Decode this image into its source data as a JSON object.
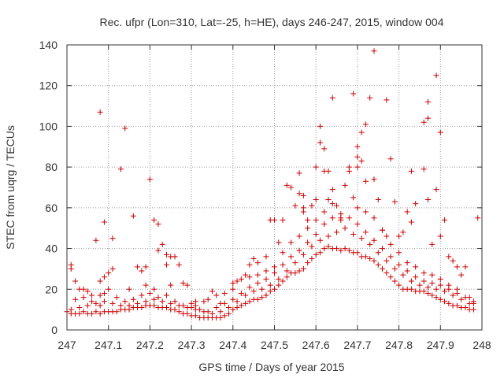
{
  "chart_data": {
    "type": "scatter",
    "title": "Rec. ufpr (Lon=310, Lat=-25, h=HE), days 246-247, 2015, window 004",
    "xlabel": "GPS time / Days of year 2015",
    "ylabel": "STEC from uqrg / TECUs",
    "xlim": [
      247,
      248
    ],
    "ylim": [
      0,
      140
    ],
    "xticks": [
      247,
      247.1,
      247.2,
      247.3,
      247.4,
      247.5,
      247.6,
      247.7,
      247.8,
      247.9,
      248
    ],
    "xtick_labels": [
      "247",
      "247.1",
      "247.2",
      "247.3",
      "247.4",
      "247.5",
      "247.6",
      "247.7",
      "247.8",
      "247.9",
      "248"
    ],
    "yticks": [
      0,
      20,
      40,
      60,
      80,
      100,
      120,
      140
    ],
    "ytick_labels": [
      "0",
      "20",
      "40",
      "60",
      "80",
      "100",
      "120",
      "140"
    ],
    "grid": true,
    "marker": "+",
    "color": "#cc0000",
    "points": [
      [
        247.01,
        32
      ],
      [
        247.01,
        30
      ],
      [
        247.02,
        24
      ],
      [
        247.03,
        20
      ],
      [
        247.04,
        20
      ],
      [
        247.05,
        19
      ],
      [
        247.06,
        14
      ],
      [
        247.08,
        17
      ],
      [
        247.09,
        18
      ],
      [
        247.09,
        26
      ],
      [
        247.1,
        28
      ],
      [
        247.08,
        24
      ],
      [
        247.07,
        44
      ],
      [
        247.09,
        53
      ],
      [
        247.11,
        45
      ],
      [
        247.08,
        107
      ],
      [
        247.13,
        79
      ],
      [
        247.14,
        99
      ],
      [
        247.16,
        56
      ],
      [
        247.17,
        31
      ],
      [
        247.19,
        31
      ],
      [
        247.19,
        22
      ],
      [
        247.2,
        74
      ],
      [
        247.21,
        54
      ],
      [
        247.22,
        52
      ],
      [
        247.22,
        39
      ],
      [
        247.23,
        42
      ],
      [
        247.24,
        37
      ],
      [
        247.25,
        36
      ],
      [
        247.26,
        36
      ],
      [
        247.24,
        32
      ],
      [
        247.27,
        32
      ],
      [
        247.29,
        22
      ],
      [
        247.3,
        13
      ],
      [
        247.31,
        12
      ],
      [
        247.33,
        14
      ],
      [
        247.35,
        19
      ],
      [
        247.36,
        17
      ],
      [
        247.38,
        18
      ],
      [
        247.4,
        20
      ],
      [
        247.41,
        24
      ],
      [
        247.43,
        27
      ],
      [
        247.44,
        32
      ],
      [
        247.45,
        35
      ],
      [
        247.46,
        33
      ],
      [
        247.48,
        36
      ],
      [
        247.49,
        54
      ],
      [
        247.5,
        54
      ],
      [
        247.51,
        43
      ],
      [
        247.52,
        54
      ],
      [
        247.53,
        71
      ],
      [
        247.54,
        70
      ],
      [
        247.55,
        61
      ],
      [
        247.56,
        77
      ],
      [
        247.56,
        67
      ],
      [
        247.57,
        66
      ],
      [
        247.57,
        60
      ],
      [
        247.57,
        58
      ],
      [
        247.58,
        54
      ],
      [
        247.59,
        61
      ],
      [
        247.6,
        80
      ],
      [
        247.6,
        64
      ],
      [
        247.61,
        92
      ],
      [
        247.61,
        100
      ],
      [
        247.62,
        89
      ],
      [
        247.62,
        78
      ],
      [
        247.63,
        78
      ],
      [
        247.63,
        64
      ],
      [
        247.64,
        114
      ],
      [
        247.64,
        69
      ],
      [
        247.65,
        61
      ],
      [
        247.66,
        54
      ],
      [
        247.67,
        71
      ],
      [
        247.68,
        78
      ],
      [
        247.68,
        80
      ],
      [
        247.69,
        116
      ],
      [
        247.69,
        65
      ],
      [
        247.7,
        90
      ],
      [
        247.7,
        85
      ],
      [
        247.7,
        80
      ],
      [
        247.71,
        97
      ],
      [
        247.71,
        83
      ],
      [
        247.72,
        101
      ],
      [
        247.72,
        73
      ],
      [
        247.73,
        114
      ],
      [
        247.74,
        137
      ],
      [
        247.74,
        74
      ],
      [
        247.75,
        64
      ],
      [
        247.76,
        49
      ],
      [
        247.77,
        113
      ],
      [
        247.77,
        46
      ],
      [
        247.78,
        84
      ],
      [
        247.79,
        63
      ],
      [
        247.8,
        46
      ],
      [
        247.81,
        48
      ],
      [
        247.82,
        58
      ],
      [
        247.83,
        78
      ],
      [
        247.83,
        53
      ],
      [
        247.84,
        62
      ],
      [
        247.86,
        79
      ],
      [
        247.86,
        102
      ],
      [
        247.87,
        104
      ],
      [
        247.87,
        112
      ],
      [
        247.87,
        64
      ],
      [
        247.88,
        42
      ],
      [
        247.89,
        125
      ],
      [
        247.89,
        69
      ],
      [
        247.9,
        97
      ],
      [
        247.9,
        46
      ],
      [
        247.91,
        54
      ],
      [
        247.92,
        36
      ],
      [
        247.93,
        34
      ],
      [
        247.94,
        31
      ],
      [
        247.95,
        27
      ],
      [
        247.96,
        31
      ],
      [
        247.97,
        16
      ],
      [
        247.98,
        13
      ],
      [
        247.99,
        55
      ],
      [
        247.0,
        9
      ],
      [
        247.01,
        8
      ],
      [
        247.02,
        8
      ],
      [
        247.03,
        8
      ],
      [
        247.04,
        9
      ],
      [
        247.05,
        8
      ],
      [
        247.06,
        8
      ],
      [
        247.07,
        9
      ],
      [
        247.08,
        8
      ],
      [
        247.09,
        9
      ],
      [
        247.1,
        9
      ],
      [
        247.11,
        9
      ],
      [
        247.12,
        9
      ],
      [
        247.13,
        10
      ],
      [
        247.14,
        10
      ],
      [
        247.15,
        10
      ],
      [
        247.16,
        11
      ],
      [
        247.17,
        11
      ],
      [
        247.18,
        11
      ],
      [
        247.19,
        12
      ],
      [
        247.2,
        12
      ],
      [
        247.21,
        12
      ],
      [
        247.22,
        11
      ],
      [
        247.23,
        11
      ],
      [
        247.24,
        11
      ],
      [
        247.25,
        10
      ],
      [
        247.26,
        10
      ],
      [
        247.27,
        9
      ],
      [
        247.28,
        8
      ],
      [
        247.29,
        8
      ],
      [
        247.3,
        7
      ],
      [
        247.31,
        7
      ],
      [
        247.32,
        6
      ],
      [
        247.33,
        6
      ],
      [
        247.34,
        6
      ],
      [
        247.35,
        6
      ],
      [
        247.36,
        6
      ],
      [
        247.37,
        6
      ],
      [
        247.38,
        7
      ],
      [
        247.39,
        8
      ],
      [
        247.4,
        10
      ],
      [
        247.41,
        11
      ],
      [
        247.42,
        12
      ],
      [
        247.43,
        13
      ],
      [
        247.44,
        14
      ],
      [
        247.45,
        15
      ],
      [
        247.46,
        15
      ],
      [
        247.47,
        16
      ],
      [
        247.48,
        17
      ],
      [
        247.49,
        19
      ],
      [
        247.5,
        20
      ],
      [
        247.51,
        22
      ],
      [
        247.52,
        24
      ],
      [
        247.53,
        26
      ],
      [
        247.54,
        28
      ],
      [
        247.55,
        28
      ],
      [
        247.56,
        29
      ],
      [
        247.57,
        30
      ],
      [
        247.58,
        33
      ],
      [
        247.59,
        35
      ],
      [
        247.6,
        37
      ],
      [
        247.61,
        38
      ],
      [
        247.62,
        40
      ],
      [
        247.63,
        41
      ],
      [
        247.64,
        40
      ],
      [
        247.65,
        40
      ],
      [
        247.66,
        39
      ],
      [
        247.67,
        40
      ],
      [
        247.68,
        39
      ],
      [
        247.69,
        38
      ],
      [
        247.7,
        38
      ],
      [
        247.71,
        36
      ],
      [
        247.72,
        36
      ],
      [
        247.73,
        35
      ],
      [
        247.74,
        34
      ],
      [
        247.75,
        32
      ],
      [
        247.76,
        30
      ],
      [
        247.77,
        28
      ],
      [
        247.78,
        26
      ],
      [
        247.79,
        24
      ],
      [
        247.8,
        22
      ],
      [
        247.81,
        20
      ],
      [
        247.82,
        20
      ],
      [
        247.83,
        20
      ],
      [
        247.84,
        19
      ],
      [
        247.85,
        19
      ],
      [
        247.86,
        19
      ],
      [
        247.87,
        18
      ],
      [
        247.88,
        17
      ],
      [
        247.89,
        16
      ],
      [
        247.9,
        15
      ],
      [
        247.91,
        14
      ],
      [
        247.92,
        13
      ],
      [
        247.93,
        12
      ],
      [
        247.94,
        12
      ],
      [
        247.95,
        11
      ],
      [
        247.96,
        11
      ],
      [
        247.97,
        10
      ],
      [
        247.98,
        10
      ],
      [
        247.01,
        10
      ],
      [
        247.03,
        11
      ],
      [
        247.05,
        12
      ],
      [
        247.07,
        13
      ],
      [
        247.09,
        14
      ],
      [
        247.11,
        13
      ],
      [
        247.13,
        12
      ],
      [
        247.15,
        12
      ],
      [
        247.17,
        13
      ],
      [
        247.19,
        14
      ],
      [
        247.21,
        15
      ],
      [
        247.23,
        14
      ],
      [
        247.25,
        13
      ],
      [
        247.27,
        12
      ],
      [
        247.29,
        11
      ],
      [
        247.31,
        10
      ],
      [
        247.33,
        9
      ],
      [
        247.35,
        8
      ],
      [
        247.37,
        9
      ],
      [
        247.39,
        11
      ],
      [
        247.41,
        14
      ],
      [
        247.43,
        17
      ],
      [
        247.45,
        19
      ],
      [
        247.47,
        20
      ],
      [
        247.49,
        22
      ],
      [
        247.51,
        25
      ],
      [
        247.53,
        29
      ],
      [
        247.55,
        33
      ],
      [
        247.57,
        37
      ],
      [
        247.59,
        41
      ],
      [
        247.61,
        44
      ],
      [
        247.63,
        46
      ],
      [
        247.65,
        48
      ],
      [
        247.67,
        50
      ],
      [
        247.69,
        47
      ],
      [
        247.71,
        45
      ],
      [
        247.73,
        42
      ],
      [
        247.75,
        38
      ],
      [
        247.77,
        34
      ],
      [
        247.79,
        30
      ],
      [
        247.81,
        27
      ],
      [
        247.83,
        24
      ],
      [
        247.85,
        22
      ],
      [
        247.87,
        21
      ],
      [
        247.89,
        20
      ],
      [
        247.91,
        19
      ],
      [
        247.93,
        17
      ],
      [
        247.95,
        15
      ],
      [
        247.97,
        13
      ],
      [
        247.02,
        15
      ],
      [
        247.04,
        16
      ],
      [
        247.06,
        17
      ],
      [
        247.08,
        12
      ],
      [
        247.1,
        20
      ],
      [
        247.12,
        16
      ],
      [
        247.14,
        14
      ],
      [
        247.16,
        15
      ],
      [
        247.18,
        17
      ],
      [
        247.2,
        18
      ],
      [
        247.22,
        16
      ],
      [
        247.24,
        17
      ],
      [
        247.26,
        14
      ],
      [
        247.28,
        12
      ],
      [
        247.3,
        11
      ],
      [
        247.32,
        10
      ],
      [
        247.34,
        9
      ],
      [
        247.36,
        11
      ],
      [
        247.38,
        13
      ],
      [
        247.4,
        15
      ],
      [
        247.42,
        18
      ],
      [
        247.44,
        21
      ],
      [
        247.46,
        23
      ],
      [
        247.48,
        25
      ],
      [
        247.5,
        28
      ],
      [
        247.52,
        32
      ],
      [
        247.54,
        36
      ],
      [
        247.56,
        39
      ],
      [
        247.58,
        43
      ],
      [
        247.6,
        47
      ],
      [
        247.62,
        52
      ],
      [
        247.64,
        55
      ],
      [
        247.66,
        57
      ],
      [
        247.68,
        55
      ],
      [
        247.7,
        52
      ],
      [
        247.72,
        48
      ],
      [
        247.74,
        44
      ],
      [
        247.76,
        40
      ],
      [
        247.78,
        36
      ],
      [
        247.8,
        32
      ],
      [
        247.82,
        29
      ],
      [
        247.84,
        26
      ],
      [
        247.86,
        24
      ],
      [
        247.88,
        23
      ],
      [
        247.9,
        22
      ],
      [
        247.92,
        20
      ],
      [
        247.94,
        18
      ],
      [
        247.96,
        16
      ],
      [
        247.98,
        14
      ],
      [
        247.11,
        30
      ],
      [
        247.15,
        20
      ],
      [
        247.18,
        29
      ],
      [
        247.21,
        20
      ],
      [
        247.25,
        22
      ],
      [
        247.28,
        23
      ],
      [
        247.31,
        14
      ],
      [
        247.34,
        15
      ],
      [
        247.37,
        13
      ],
      [
        247.4,
        23
      ],
      [
        247.42,
        25
      ],
      [
        247.44,
        26
      ],
      [
        247.46,
        27
      ],
      [
        247.48,
        29
      ],
      [
        247.5,
        31
      ],
      [
        247.52,
        38
      ],
      [
        247.54,
        43
      ],
      [
        247.56,
        46
      ],
      [
        247.58,
        50
      ],
      [
        247.6,
        54
      ],
      [
        247.62,
        58
      ],
      [
        247.64,
        62
      ],
      [
        247.66,
        55
      ],
      [
        247.7,
        60
      ],
      [
        247.72,
        58
      ],
      [
        247.74,
        55
      ],
      [
        247.76,
        49
      ],
      [
        247.78,
        42
      ],
      [
        247.8,
        38
      ],
      [
        247.82,
        33
      ],
      [
        247.84,
        31
      ],
      [
        247.86,
        28
      ],
      [
        247.88,
        27
      ],
      [
        247.9,
        25
      ],
      [
        247.92,
        22
      ],
      [
        247.94,
        20
      ]
    ]
  }
}
